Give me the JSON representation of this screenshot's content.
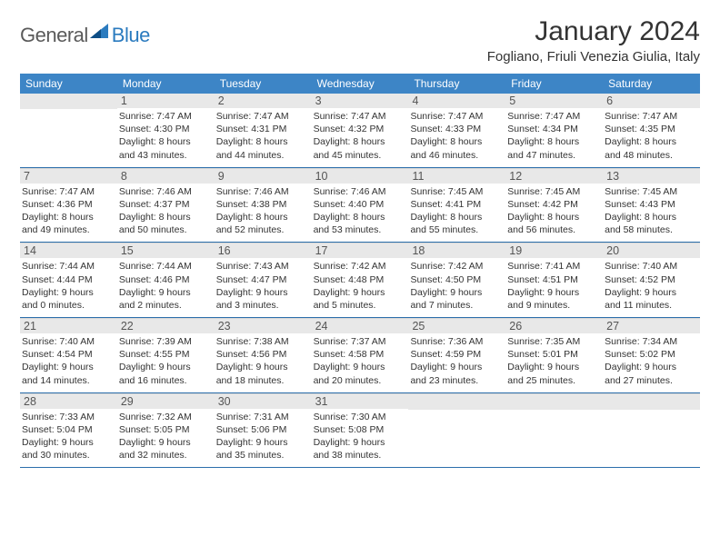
{
  "logo": {
    "general": "General",
    "blue": "Blue"
  },
  "title": "January 2024",
  "location": "Fogliano, Friuli Venezia Giulia, Italy",
  "colors": {
    "header_bg": "#3d85c6",
    "header_text": "#ffffff",
    "daynum_bg": "#e8e8e8",
    "daynum_text": "#555555",
    "row_border": "#2b6eab",
    "body_text": "#333333",
    "logo_gray": "#5a5a5a",
    "logo_blue": "#2b7bbf"
  },
  "typography": {
    "title_fontsize": 30,
    "location_fontsize": 15,
    "dayheader_fontsize": 12,
    "daynum_fontsize": 12.5,
    "cell_fontsize": 10.5,
    "logo_fontsize": 22
  },
  "day_headers": [
    "Sunday",
    "Monday",
    "Tuesday",
    "Wednesday",
    "Thursday",
    "Friday",
    "Saturday"
  ],
  "weeks": [
    [
      {
        "num": "",
        "sunrise": "",
        "sunset": "",
        "daylight1": "",
        "daylight2": ""
      },
      {
        "num": "1",
        "sunrise": "Sunrise: 7:47 AM",
        "sunset": "Sunset: 4:30 PM",
        "daylight1": "Daylight: 8 hours",
        "daylight2": "and 43 minutes."
      },
      {
        "num": "2",
        "sunrise": "Sunrise: 7:47 AM",
        "sunset": "Sunset: 4:31 PM",
        "daylight1": "Daylight: 8 hours",
        "daylight2": "and 44 minutes."
      },
      {
        "num": "3",
        "sunrise": "Sunrise: 7:47 AM",
        "sunset": "Sunset: 4:32 PM",
        "daylight1": "Daylight: 8 hours",
        "daylight2": "and 45 minutes."
      },
      {
        "num": "4",
        "sunrise": "Sunrise: 7:47 AM",
        "sunset": "Sunset: 4:33 PM",
        "daylight1": "Daylight: 8 hours",
        "daylight2": "and 46 minutes."
      },
      {
        "num": "5",
        "sunrise": "Sunrise: 7:47 AM",
        "sunset": "Sunset: 4:34 PM",
        "daylight1": "Daylight: 8 hours",
        "daylight2": "and 47 minutes."
      },
      {
        "num": "6",
        "sunrise": "Sunrise: 7:47 AM",
        "sunset": "Sunset: 4:35 PM",
        "daylight1": "Daylight: 8 hours",
        "daylight2": "and 48 minutes."
      }
    ],
    [
      {
        "num": "7",
        "sunrise": "Sunrise: 7:47 AM",
        "sunset": "Sunset: 4:36 PM",
        "daylight1": "Daylight: 8 hours",
        "daylight2": "and 49 minutes."
      },
      {
        "num": "8",
        "sunrise": "Sunrise: 7:46 AM",
        "sunset": "Sunset: 4:37 PM",
        "daylight1": "Daylight: 8 hours",
        "daylight2": "and 50 minutes."
      },
      {
        "num": "9",
        "sunrise": "Sunrise: 7:46 AM",
        "sunset": "Sunset: 4:38 PM",
        "daylight1": "Daylight: 8 hours",
        "daylight2": "and 52 minutes."
      },
      {
        "num": "10",
        "sunrise": "Sunrise: 7:46 AM",
        "sunset": "Sunset: 4:40 PM",
        "daylight1": "Daylight: 8 hours",
        "daylight2": "and 53 minutes."
      },
      {
        "num": "11",
        "sunrise": "Sunrise: 7:45 AM",
        "sunset": "Sunset: 4:41 PM",
        "daylight1": "Daylight: 8 hours",
        "daylight2": "and 55 minutes."
      },
      {
        "num": "12",
        "sunrise": "Sunrise: 7:45 AM",
        "sunset": "Sunset: 4:42 PM",
        "daylight1": "Daylight: 8 hours",
        "daylight2": "and 56 minutes."
      },
      {
        "num": "13",
        "sunrise": "Sunrise: 7:45 AM",
        "sunset": "Sunset: 4:43 PM",
        "daylight1": "Daylight: 8 hours",
        "daylight2": "and 58 minutes."
      }
    ],
    [
      {
        "num": "14",
        "sunrise": "Sunrise: 7:44 AM",
        "sunset": "Sunset: 4:44 PM",
        "daylight1": "Daylight: 9 hours",
        "daylight2": "and 0 minutes."
      },
      {
        "num": "15",
        "sunrise": "Sunrise: 7:44 AM",
        "sunset": "Sunset: 4:46 PM",
        "daylight1": "Daylight: 9 hours",
        "daylight2": "and 2 minutes."
      },
      {
        "num": "16",
        "sunrise": "Sunrise: 7:43 AM",
        "sunset": "Sunset: 4:47 PM",
        "daylight1": "Daylight: 9 hours",
        "daylight2": "and 3 minutes."
      },
      {
        "num": "17",
        "sunrise": "Sunrise: 7:42 AM",
        "sunset": "Sunset: 4:48 PM",
        "daylight1": "Daylight: 9 hours",
        "daylight2": "and 5 minutes."
      },
      {
        "num": "18",
        "sunrise": "Sunrise: 7:42 AM",
        "sunset": "Sunset: 4:50 PM",
        "daylight1": "Daylight: 9 hours",
        "daylight2": "and 7 minutes."
      },
      {
        "num": "19",
        "sunrise": "Sunrise: 7:41 AM",
        "sunset": "Sunset: 4:51 PM",
        "daylight1": "Daylight: 9 hours",
        "daylight2": "and 9 minutes."
      },
      {
        "num": "20",
        "sunrise": "Sunrise: 7:40 AM",
        "sunset": "Sunset: 4:52 PM",
        "daylight1": "Daylight: 9 hours",
        "daylight2": "and 11 minutes."
      }
    ],
    [
      {
        "num": "21",
        "sunrise": "Sunrise: 7:40 AM",
        "sunset": "Sunset: 4:54 PM",
        "daylight1": "Daylight: 9 hours",
        "daylight2": "and 14 minutes."
      },
      {
        "num": "22",
        "sunrise": "Sunrise: 7:39 AM",
        "sunset": "Sunset: 4:55 PM",
        "daylight1": "Daylight: 9 hours",
        "daylight2": "and 16 minutes."
      },
      {
        "num": "23",
        "sunrise": "Sunrise: 7:38 AM",
        "sunset": "Sunset: 4:56 PM",
        "daylight1": "Daylight: 9 hours",
        "daylight2": "and 18 minutes."
      },
      {
        "num": "24",
        "sunrise": "Sunrise: 7:37 AM",
        "sunset": "Sunset: 4:58 PM",
        "daylight1": "Daylight: 9 hours",
        "daylight2": "and 20 minutes."
      },
      {
        "num": "25",
        "sunrise": "Sunrise: 7:36 AM",
        "sunset": "Sunset: 4:59 PM",
        "daylight1": "Daylight: 9 hours",
        "daylight2": "and 23 minutes."
      },
      {
        "num": "26",
        "sunrise": "Sunrise: 7:35 AM",
        "sunset": "Sunset: 5:01 PM",
        "daylight1": "Daylight: 9 hours",
        "daylight2": "and 25 minutes."
      },
      {
        "num": "27",
        "sunrise": "Sunrise: 7:34 AM",
        "sunset": "Sunset: 5:02 PM",
        "daylight1": "Daylight: 9 hours",
        "daylight2": "and 27 minutes."
      }
    ],
    [
      {
        "num": "28",
        "sunrise": "Sunrise: 7:33 AM",
        "sunset": "Sunset: 5:04 PM",
        "daylight1": "Daylight: 9 hours",
        "daylight2": "and 30 minutes."
      },
      {
        "num": "29",
        "sunrise": "Sunrise: 7:32 AM",
        "sunset": "Sunset: 5:05 PM",
        "daylight1": "Daylight: 9 hours",
        "daylight2": "and 32 minutes."
      },
      {
        "num": "30",
        "sunrise": "Sunrise: 7:31 AM",
        "sunset": "Sunset: 5:06 PM",
        "daylight1": "Daylight: 9 hours",
        "daylight2": "and 35 minutes."
      },
      {
        "num": "31",
        "sunrise": "Sunrise: 7:30 AM",
        "sunset": "Sunset: 5:08 PM",
        "daylight1": "Daylight: 9 hours",
        "daylight2": "and 38 minutes."
      },
      {
        "num": "",
        "sunrise": "",
        "sunset": "",
        "daylight1": "",
        "daylight2": ""
      },
      {
        "num": "",
        "sunrise": "",
        "sunset": "",
        "daylight1": "",
        "daylight2": ""
      },
      {
        "num": "",
        "sunrise": "",
        "sunset": "",
        "daylight1": "",
        "daylight2": ""
      }
    ]
  ]
}
